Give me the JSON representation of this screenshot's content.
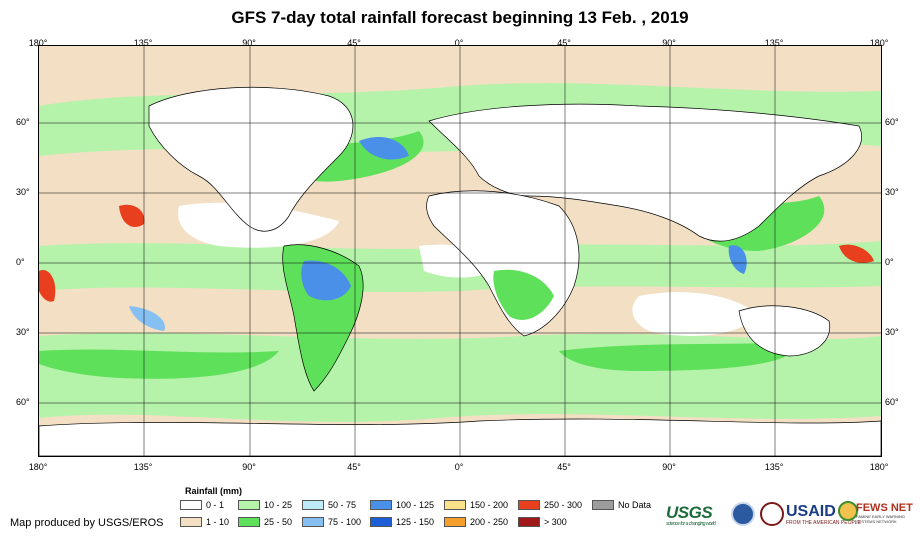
{
  "title": "GFS 7-day total rainfall forecast beginning 13 Feb. , 2019",
  "map": {
    "longitude_labels": [
      "180°",
      "135°",
      "90°",
      "45°",
      "0°",
      "45°",
      "90°",
      "135°",
      "180°"
    ],
    "latitude_labels": [
      "60°",
      "30°",
      "0°",
      "30°",
      "60°"
    ],
    "colors": {
      "ocean_no_rain": "#ffffff",
      "dry": "#f2dfc4",
      "light": "#a8f0a0",
      "moderate": "#5fe05a",
      "moist": "#9edcf5",
      "heavy": "#5aa0f0",
      "extreme": "#e8401e"
    }
  },
  "legend": {
    "title": "Rainfall (mm)",
    "items": [
      {
        "label": "0 - 1",
        "color": "#ffffff"
      },
      {
        "label": "1 - 10",
        "color": "#f2dfc4"
      },
      {
        "label": "10 - 25",
        "color": "#b5f3aa"
      },
      {
        "label": "25 - 50",
        "color": "#5fe05a"
      },
      {
        "label": "50 - 75",
        "color": "#bdebf7"
      },
      {
        "label": "75 - 100",
        "color": "#86bff2"
      },
      {
        "label": "100 - 125",
        "color": "#4a90e8"
      },
      {
        "label": "125 - 150",
        "color": "#1c5fd8"
      },
      {
        "label": "150 - 200",
        "color": "#fbe28a"
      },
      {
        "label": "200 - 250",
        "color": "#f5a02c"
      },
      {
        "label": "250 - 300",
        "color": "#e8401e"
      },
      {
        "label": "> 300",
        "color": "#a01818"
      },
      {
        "label": "No Data",
        "color": "#9c9c9c"
      }
    ]
  },
  "credit": "Map produced by USGS/EROS",
  "logos": {
    "usgs": "USGS",
    "usgs_tagline": "science for a changing world",
    "usaid": "USAID",
    "usaid_tagline": "FROM THE AMERICAN PEOPLE",
    "fews": "FEWS NET",
    "fews_tagline": "FAMINE EARLY WARNING SYSTEMS NETWORK"
  }
}
